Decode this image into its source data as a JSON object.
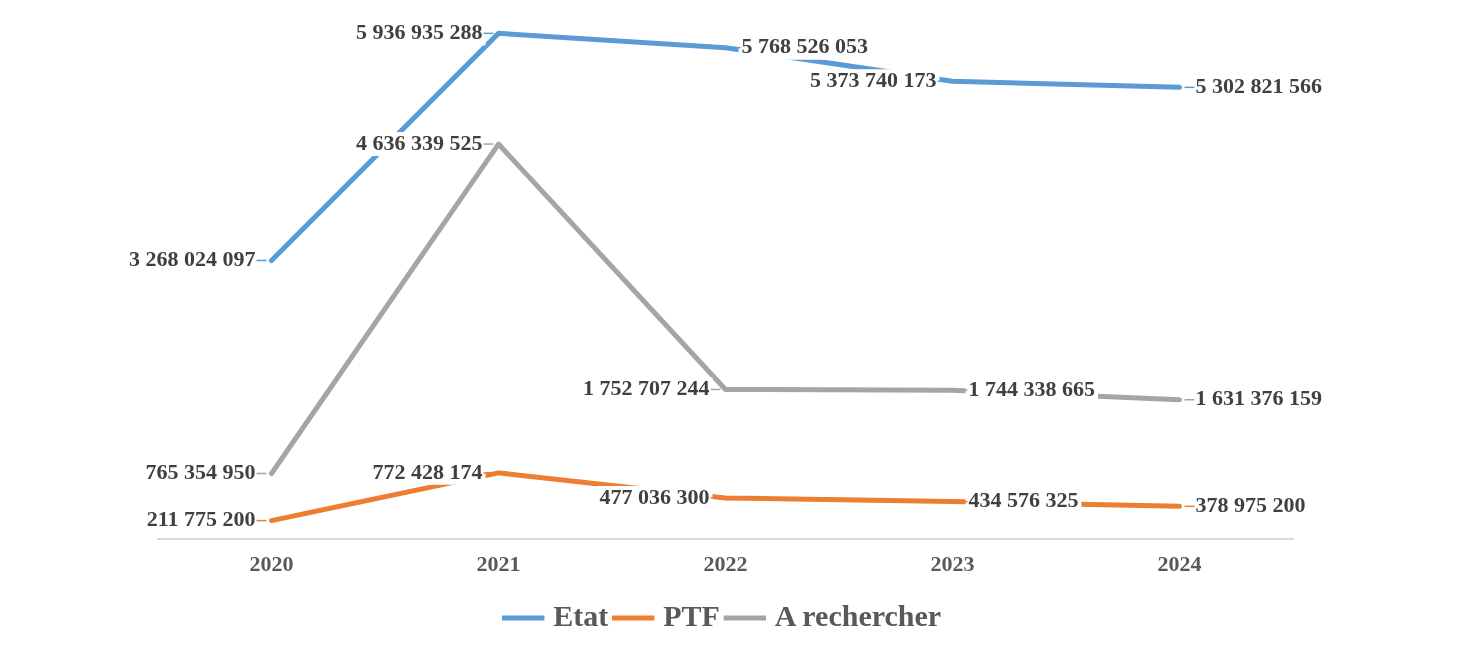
{
  "chart_data": {
    "type": "line",
    "categories": [
      "2020",
      "2021",
      "2022",
      "2023",
      "2024"
    ],
    "series": [
      {
        "name": "Etat",
        "color": "#5b9bd5",
        "values": [
          3268024097,
          5936935288,
          5768526053,
          5373740173,
          5302821566
        ],
        "value_labels": [
          "3 268 024 097",
          "5 936 935 288",
          "5 768 526 053",
          "5 373 740 173",
          "5 302 821 566"
        ]
      },
      {
        "name": "PTF",
        "color": "#ed7d31",
        "values": [
          211775200,
          772428174,
          477036300,
          434576325,
          378975200
        ],
        "value_labels": [
          "211 775 200",
          "772 428 174",
          "477 036 300",
          "434 576 325",
          "378 975 200"
        ]
      },
      {
        "name": "A rechercher",
        "color": "#a5a5a5",
        "values": [
          765354950,
          4636339525,
          1752707244,
          1744338665,
          1631376159
        ],
        "value_labels": [
          "765 354 950",
          "4 636 339 525",
          "1 752 707 244",
          "1 744 338 665",
          "1 631 376 159"
        ]
      }
    ],
    "legend": "bottom",
    "grid": false,
    "marker": "none",
    "line_style": "solid",
    "tick_labels": "x"
  }
}
